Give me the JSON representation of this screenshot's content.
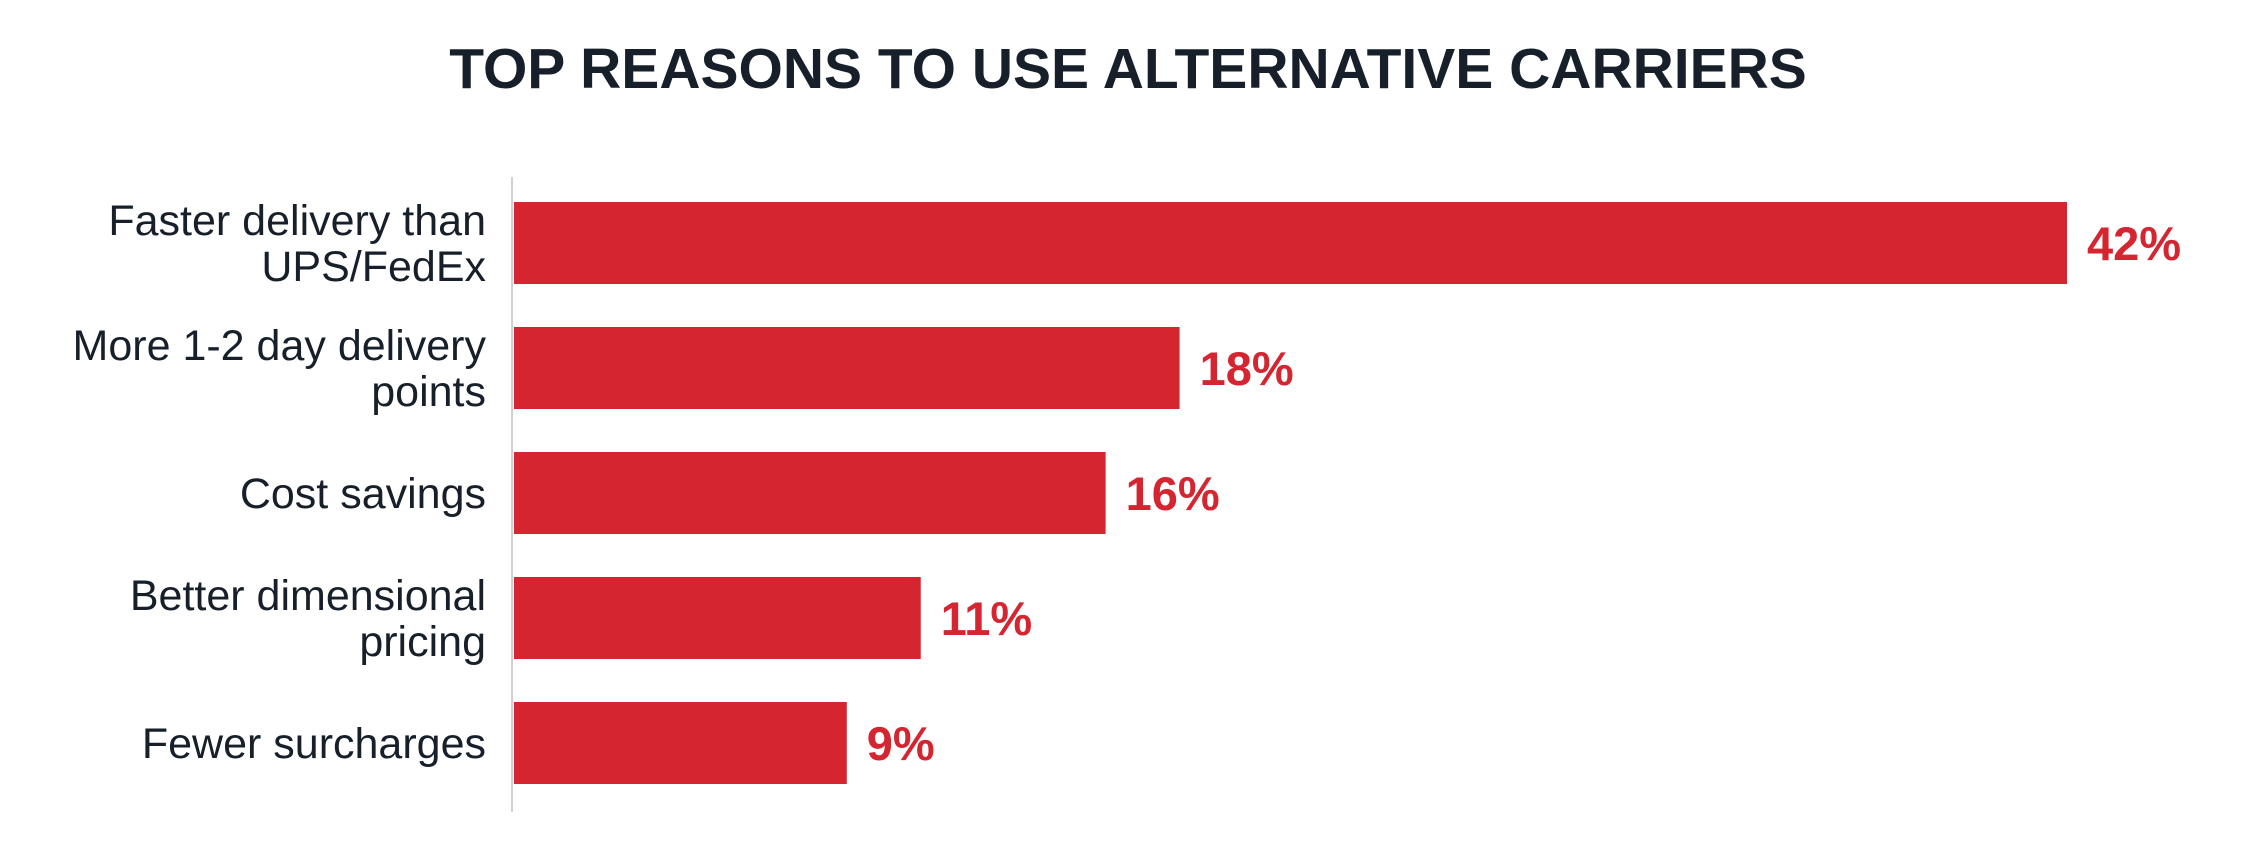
{
  "colors": {
    "bar": "#d42531",
    "value_text": "#d42531",
    "title_text": "#17202a",
    "label_text": "#17202a",
    "axis_line": "#d0d0d0"
  },
  "chart_data": {
    "type": "bar",
    "orientation": "horizontal",
    "title": "TOP REASONS TO USE ALTERNATIVE CARRIERS",
    "categories": [
      [
        "Faster delivery than",
        "UPS/FedEx"
      ],
      [
        "More 1-2 day delivery",
        "points"
      ],
      [
        "Cost savings"
      ],
      [
        "Better dimensional",
        "pricing"
      ],
      [
        "Fewer surcharges"
      ]
    ],
    "values": [
      42,
      18,
      16,
      11,
      9
    ],
    "value_labels": [
      "42%",
      "18%",
      "16%",
      "11%",
      "9%"
    ],
    "unit": "%",
    "xlim": [
      0,
      42
    ],
    "grid": false,
    "legend": "none"
  }
}
